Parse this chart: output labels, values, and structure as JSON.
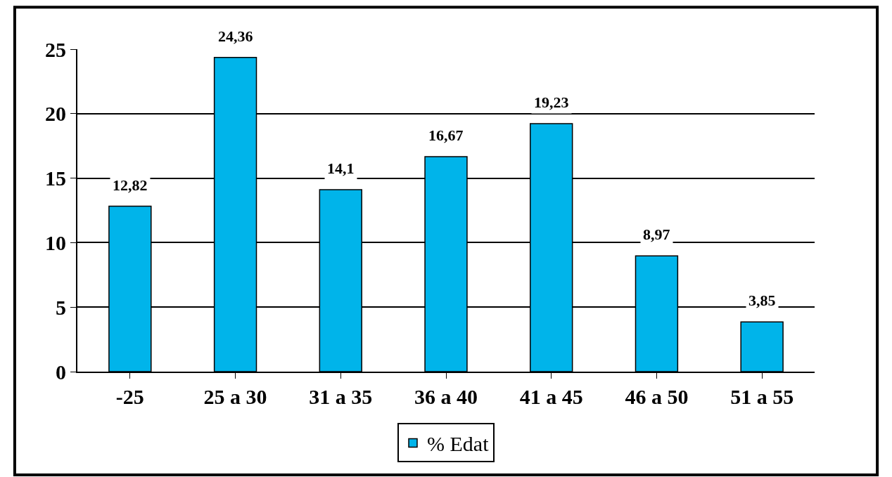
{
  "chart_data": {
    "type": "bar",
    "categories": [
      "-25",
      "25 a 30",
      "31 a 35",
      "36 a 40",
      "41 a 45",
      "46 a 50",
      "51 a 55"
    ],
    "series": [
      {
        "name": "% Edat",
        "color": "#00b4ea",
        "values": [
          12.82,
          24.36,
          14.1,
          16.67,
          19.23,
          8.97,
          3.85
        ],
        "value_labels": [
          "12,82",
          "24,36",
          "14,1",
          "16,67",
          "19,23",
          "8,97",
          "3,85"
        ]
      }
    ],
    "ylim": [
      0,
      25
    ],
    "yticks": [
      0,
      5,
      10,
      15,
      20,
      25
    ],
    "grid": "y",
    "legend": "bottom"
  }
}
